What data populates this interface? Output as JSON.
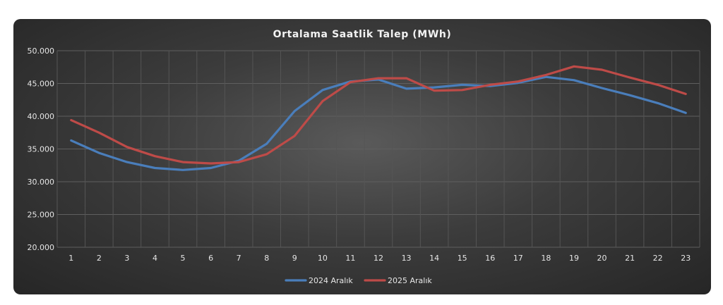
{
  "chart_data": {
    "type": "line",
    "title": "Ortalama Saatlik Talep (MWh)",
    "xlabel": "",
    "ylabel": "",
    "categories": [
      "1",
      "2",
      "3",
      "4",
      "5",
      "6",
      "7",
      "8",
      "9",
      "10",
      "11",
      "12",
      "13",
      "14",
      "15",
      "16",
      "17",
      "18",
      "19",
      "20",
      "21",
      "22",
      "23"
    ],
    "ylim": [
      20000,
      50000
    ],
    "yticks": [
      20000,
      25000,
      30000,
      35000,
      40000,
      45000,
      50000
    ],
    "ytick_labels": [
      "20.000",
      "25.000",
      "30.000",
      "35.000",
      "40.000",
      "45.000",
      "50.000"
    ],
    "grid": true,
    "legend_position": "bottom",
    "series": [
      {
        "name": "2024 Aralık",
        "color": "#4a7ebb",
        "values": [
          36300,
          34400,
          33000,
          32100,
          31800,
          32100,
          33200,
          35800,
          40800,
          44000,
          45300,
          45600,
          44200,
          44400,
          44800,
          44600,
          45100,
          46000,
          45500,
          44300,
          43200,
          42000,
          40500
        ]
      },
      {
        "name": "2025 Aralık",
        "color": "#be4b48",
        "values": [
          39400,
          37500,
          35300,
          33900,
          33000,
          32800,
          33000,
          34200,
          37000,
          42300,
          45200,
          45800,
          45800,
          43900,
          44000,
          44800,
          45300,
          46300,
          47600,
          47100,
          45900,
          44800,
          43400
        ]
      }
    ]
  }
}
